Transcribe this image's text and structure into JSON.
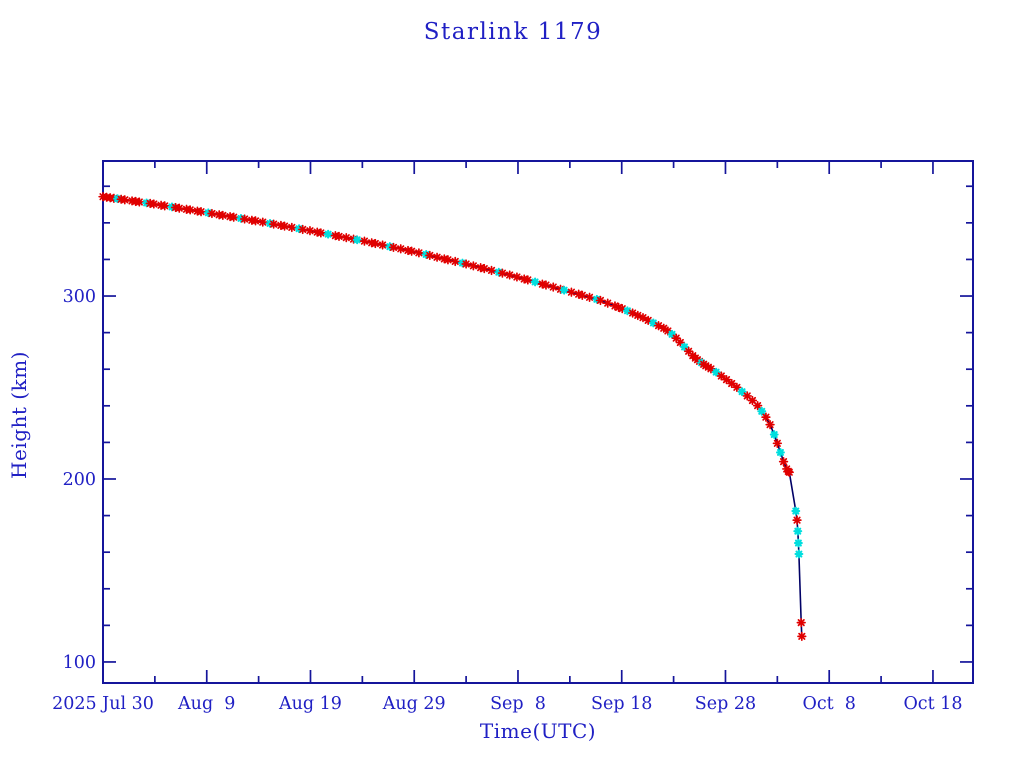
{
  "chart_data": {
    "type": "line",
    "title": "Starlink 1179",
    "xlabel": "Time(UTC)",
    "ylabel": "Height (km)",
    "x_unit": "days since 2025 Jul 30 00:00 UTC",
    "x_axis": {
      "range": [
        0,
        83.86
      ],
      "major_ticks": [
        {
          "d": 0,
          "label": "2025 Jul 30"
        },
        {
          "d": 10,
          "label": "Aug  9"
        },
        {
          "d": 20,
          "label": "Aug 19"
        },
        {
          "d": 30,
          "label": "Aug 29"
        },
        {
          "d": 40,
          "label": "Sep  8"
        },
        {
          "d": 50,
          "label": "Sep 18"
        },
        {
          "d": 60,
          "label": "Sep 28"
        },
        {
          "d": 70,
          "label": "Oct  8"
        },
        {
          "d": 80,
          "label": "Oct 18"
        }
      ],
      "minor_ticks": [
        5,
        15,
        25,
        35,
        45,
        55,
        65,
        75
      ]
    },
    "y_axis": {
      "range": [
        88.5,
        373.8
      ],
      "major_ticks": [
        {
          "v": 100,
          "label": "100"
        },
        {
          "v": 200,
          "label": "200"
        },
        {
          "v": 300,
          "label": "300"
        }
      ],
      "minor_ticks": [
        120,
        140,
        160,
        180,
        220,
        240,
        260,
        280,
        320,
        340,
        360
      ],
      "grid": false
    },
    "colors": {
      "text": "#2020c4",
      "frame": "#15159b",
      "line": "#000066",
      "marker_primary": "#e00000",
      "marker_secondary": "#00dede"
    },
    "legend": "none",
    "series_name": "orbital height from tracking elements (red asterisks; cyan = alternate element source)",
    "marker": "asterisk",
    "points_format": "[days_since_2025-07-30, height_km, 1_if_cyan]",
    "points": [
      [
        0,
        354.3
      ],
      [
        0.35,
        354
      ],
      [
        0.7,
        353.7
      ],
      [
        1.05,
        353.4
      ],
      [
        1.4,
        353.2,
        1
      ],
      [
        1.75,
        352.9
      ],
      [
        2.1,
        352.6
      ],
      [
        2.8,
        352
      ],
      [
        3.15,
        351.7
      ],
      [
        3.5,
        351.4
      ],
      [
        4.2,
        350.9,
        1
      ],
      [
        4.55,
        350.6
      ],
      [
        4.9,
        350.3
      ],
      [
        5.6,
        349.6
      ],
      [
        5.95,
        349.3
      ],
      [
        6.65,
        348.7,
        1
      ],
      [
        7,
        348.4
      ],
      [
        7.35,
        348
      ],
      [
        8.05,
        347.4
      ],
      [
        8.4,
        347.1
      ],
      [
        9.1,
        346.4
      ],
      [
        9.45,
        346.1
      ],
      [
        10.15,
        345.5,
        1
      ],
      [
        10.5,
        345.1
      ],
      [
        11.2,
        344.4
      ],
      [
        11.55,
        344.1
      ],
      [
        12.25,
        343.4
      ],
      [
        12.6,
        343.1
      ],
      [
        13.3,
        342.4,
        1
      ],
      [
        13.65,
        342.1
      ],
      [
        14.35,
        341.4
      ],
      [
        14.7,
        341.1
      ],
      [
        15.4,
        340.4
      ],
      [
        16.1,
        339.7,
        1
      ],
      [
        16.45,
        339.3
      ],
      [
        17.15,
        338.6
      ],
      [
        17.5,
        338.2
      ],
      [
        18.2,
        337.5
      ],
      [
        18.9,
        336.8,
        1
      ],
      [
        19.25,
        336.4
      ],
      [
        19.95,
        335.7
      ],
      [
        20.65,
        334.9
      ],
      [
        21,
        334.5
      ],
      [
        21.7,
        333.8,
        1
      ],
      [
        22.4,
        333
      ],
      [
        22.75,
        332.6
      ],
      [
        23.45,
        331.9
      ],
      [
        24.15,
        331.1
      ],
      [
        24.5,
        330.7,
        1
      ],
      [
        25.2,
        330
      ],
      [
        25.9,
        329.1
      ],
      [
        26.25,
        328.7
      ],
      [
        26.95,
        327.9
      ],
      [
        27.65,
        327,
        1
      ],
      [
        28,
        326.6
      ],
      [
        28.7,
        325.8
      ],
      [
        29.4,
        324.9
      ],
      [
        29.75,
        324.5
      ],
      [
        30.45,
        323.6
      ],
      [
        31.15,
        322.7,
        1
      ],
      [
        31.5,
        322.2
      ],
      [
        32.2,
        321.2
      ],
      [
        32.9,
        320.3
      ],
      [
        33.25,
        319.8
      ],
      [
        33.95,
        318.9
      ],
      [
        34.65,
        318,
        1
      ],
      [
        35,
        317.5
      ],
      [
        35.7,
        316.5
      ],
      [
        36.4,
        315.5
      ],
      [
        36.75,
        315
      ],
      [
        37.45,
        314
      ],
      [
        38.15,
        313,
        1
      ],
      [
        38.5,
        312.5
      ],
      [
        39.2,
        311.5
      ],
      [
        39.9,
        310.4
      ],
      [
        40.6,
        309.3
      ],
      [
        40.95,
        308.8
      ],
      [
        41.65,
        307.7,
        1
      ],
      [
        42.35,
        306.5
      ],
      [
        42.7,
        306
      ],
      [
        43.4,
        304.9
      ],
      [
        44.1,
        303.7
      ],
      [
        44.45,
        303.2,
        1
      ],
      [
        45.15,
        302.1
      ],
      [
        45.85,
        301
      ],
      [
        46.2,
        300.4
      ],
      [
        46.9,
        299.3
      ],
      [
        47.6,
        298.2,
        1
      ],
      [
        47.95,
        297.6
      ],
      [
        48.65,
        296.1
      ],
      [
        49.35,
        294.6
      ],
      [
        49.7,
        293.8
      ],
      [
        50.05,
        293.1
      ],
      [
        50.55,
        291.9,
        1
      ],
      [
        51.05,
        290.7
      ],
      [
        51.55,
        289.4
      ],
      [
        52.05,
        288.2
      ],
      [
        52.55,
        286.7
      ],
      [
        53.05,
        285.3,
        1
      ],
      [
        53.55,
        283.8
      ],
      [
        54.05,
        282.4
      ],
      [
        54.45,
        280.9
      ],
      [
        54.85,
        279.1,
        1
      ],
      [
        55.25,
        277
      ],
      [
        55.65,
        274.6
      ],
      [
        56.05,
        272.2,
        1
      ],
      [
        56.45,
        269.8
      ],
      [
        56.85,
        267.4
      ],
      [
        57.1,
        266.1
      ],
      [
        57.3,
        265.2
      ],
      [
        57.5,
        264.3
      ],
      [
        57.7,
        263.5,
        1
      ],
      [
        57.9,
        262.7
      ],
      [
        58.1,
        261.9
      ],
      [
        58.35,
        261.1
      ],
      [
        58.6,
        260.2
      ],
      [
        59.1,
        258.4,
        1
      ],
      [
        59.6,
        256.3
      ],
      [
        60.1,
        254.3
      ],
      [
        60.6,
        252.2
      ],
      [
        61.1,
        250.1
      ],
      [
        61.6,
        247.7,
        1
      ],
      [
        62.1,
        245.4
      ],
      [
        62.6,
        242.9
      ],
      [
        63.1,
        240.1
      ],
      [
        63.5,
        237,
        1
      ],
      [
        63.9,
        233.8
      ],
      [
        64.3,
        229.7
      ],
      [
        64.7,
        224.3,
        1
      ],
      [
        65,
        219.5
      ],
      [
        65.3,
        214.5,
        1
      ],
      [
        65.6,
        209.5
      ],
      [
        65.9,
        205.5
      ],
      [
        66.05,
        204.2
      ],
      [
        66.15,
        203.7
      ],
      [
        66.78,
        182.5,
        1
      ],
      [
        66.9,
        177.5
      ],
      [
        66.97,
        171.5,
        1
      ],
      [
        67.03,
        165,
        1
      ],
      [
        67.08,
        159,
        1
      ],
      [
        67.3,
        121.5
      ],
      [
        67.36,
        114
      ]
    ]
  }
}
